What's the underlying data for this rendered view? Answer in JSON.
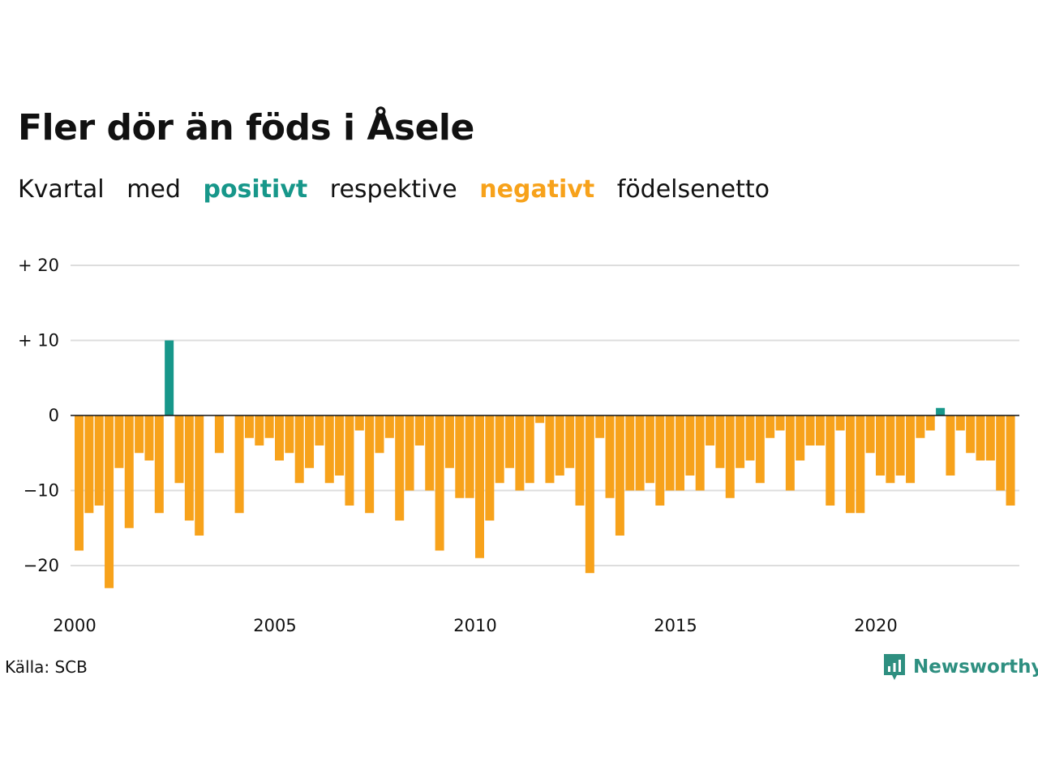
{
  "title": "Fler dör än föds i Åsele",
  "subtitle": {
    "parts": [
      {
        "text": "Kvartal",
        "role": "plain"
      },
      {
        "text": "med",
        "role": "plain"
      },
      {
        "text": "positivt",
        "role": "positive"
      },
      {
        "text": "respektive",
        "role": "plain"
      },
      {
        "text": "negativt",
        "role": "negative"
      },
      {
        "text": "födelsenetto",
        "role": "plain"
      }
    ]
  },
  "colors": {
    "positive": "#17978a",
    "negative": "#f7a21b",
    "grid": "#dddddd",
    "text": "#111111",
    "brand": "#2e8f80"
  },
  "source": "Källa: SCB",
  "brand": {
    "name": "Newsworthy",
    "icon": "newsworthy-logo-icon"
  },
  "chart_data": {
    "type": "bar",
    "x_start_year": 2000,
    "periods_per_year": 4,
    "x_tick_labels": [
      "2000",
      "2005",
      "2010",
      "2015",
      "2020"
    ],
    "y_ticks": [
      {
        "value": 20,
        "label": "+ 20"
      },
      {
        "value": 10,
        "label": "+ 10"
      },
      {
        "value": 0,
        "label": "0"
      },
      {
        "value": -10,
        "label": "−10"
      },
      {
        "value": -20,
        "label": "−20"
      }
    ],
    "ylim": [
      -25,
      22
    ],
    "grid": true,
    "values": [
      -18,
      -13,
      -12,
      -23,
      -7,
      -15,
      -5,
      -6,
      -13,
      10,
      -9,
      -14,
      -16,
      0,
      -5,
      0,
      -13,
      -3,
      -4,
      -3,
      -6,
      -5,
      -9,
      -7,
      -4,
      -9,
      -8,
      -12,
      -2,
      -13,
      -5,
      -3,
      -14,
      -10,
      -4,
      -10,
      -18,
      -7,
      -11,
      -11,
      -19,
      -14,
      -9,
      -7,
      -10,
      -9,
      -1,
      -9,
      -8,
      -7,
      -12,
      -21,
      -3,
      -11,
      -16,
      -10,
      -10,
      -9,
      -12,
      -10,
      -10,
      -8,
      -10,
      -4,
      -7,
      -11,
      -7,
      -6,
      -9,
      -3,
      -2,
      -10,
      -6,
      -4,
      -4,
      -12,
      -2,
      -13,
      -13,
      -5,
      -8,
      -9,
      -8,
      -9,
      -3,
      -2,
      1,
      -8,
      -2,
      -5,
      -6,
      -6,
      -10,
      -12
    ]
  }
}
